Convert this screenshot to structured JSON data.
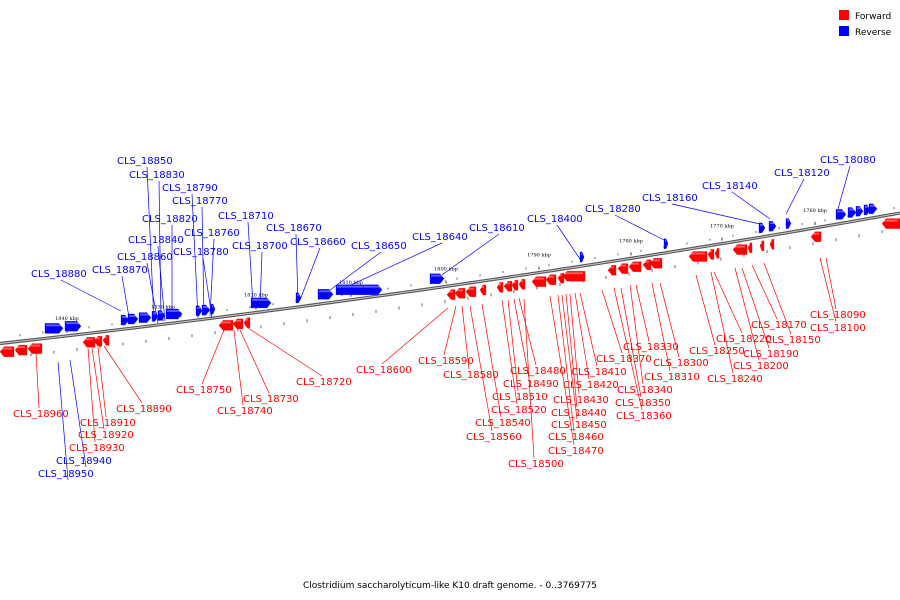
{
  "caption": "Clostridium saccharolyticum-like K10 draft genome. - 0..3769775",
  "legend": [
    {
      "label": "Forward",
      "color": "#ff0000"
    },
    {
      "label": "Reverse",
      "color": "#0000ff"
    }
  ],
  "colors": {
    "forward": "#ff0000",
    "reverse": "#0000ff",
    "backbone": "#7a7a7a"
  },
  "ticks": [
    "1840 kbp",
    "1830 kbp",
    "1820 kbp",
    "1810 kbp",
    "1800 kbp",
    "1790 kbp",
    "1780 kbp",
    "1770 kbp",
    "1760 kbp"
  ],
  "reverse_genes": [
    "CLS_18080",
    "CLS_18120",
    "CLS_18140",
    "CLS_18160",
    "CLS_18280",
    "CLS_18400",
    "CLS_18610",
    "CLS_18640",
    "CLS_18650",
    "CLS_18660",
    "CLS_18670",
    "CLS_18700",
    "CLS_18710",
    "CLS_18760",
    "CLS_18770",
    "CLS_18780",
    "CLS_18790",
    "CLS_18820",
    "CLS_18830",
    "CLS_18840",
    "CLS_18850",
    "CLS_18860",
    "CLS_18870",
    "CLS_18880",
    "CLS_18940",
    "CLS_18950"
  ],
  "forward_genes": [
    "CLS_18090",
    "CLS_18100",
    "CLS_18150",
    "CLS_18170",
    "CLS_18190",
    "CLS_18200",
    "CLS_18220",
    "CLS_18240",
    "CLS_18250",
    "CLS_18300",
    "CLS_18310",
    "CLS_18330",
    "CLS_18340",
    "CLS_18350",
    "CLS_18360",
    "CLS_18370",
    "CLS_18410",
    "CLS_18420",
    "CLS_18430",
    "CLS_18440",
    "CLS_18450",
    "CLS_18460",
    "CLS_18470",
    "CLS_18480",
    "CLS_18490",
    "CLS_18500",
    "CLS_18510",
    "CLS_18520",
    "CLS_18540",
    "CLS_18560",
    "CLS_18580",
    "CLS_18590",
    "CLS_18600",
    "CLS_18720",
    "CLS_18730",
    "CLS_18740",
    "CLS_18750",
    "CLS_18890",
    "CLS_18910",
    "CLS_18920",
    "CLS_18930",
    "CLS_18960"
  ]
}
